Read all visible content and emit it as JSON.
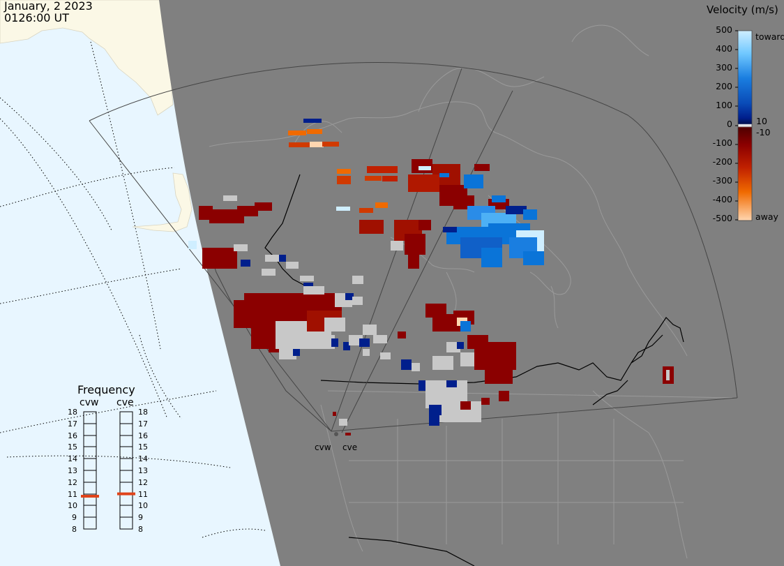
{
  "header": {
    "date": "January, 2 2023",
    "time": "0126:00 UT"
  },
  "legend": {
    "title": "Velocity (m/s)",
    "ticks": [
      "500",
      "400",
      "300",
      "200",
      "100",
      "0",
      "-100",
      "-200",
      "-300",
      "-400",
      "-500"
    ],
    "right_labels": [
      "toward",
      "10",
      "-10",
      "away"
    ],
    "colors": {
      "toward_top": "#cfeeff",
      "blue_mid": "#0a74d8",
      "blue_dark": "#001f8c",
      "red_dark": "#8b0000",
      "orange": "#f06a00",
      "away_bottom": "#ffd6b0",
      "ground_scatter": "#c8c8c8"
    }
  },
  "frequency_panel": {
    "title": "Frequency",
    "radars": [
      {
        "name": "cvw",
        "marker_value": 10.8
      },
      {
        "name": "cve",
        "marker_value": 11.0
      }
    ],
    "scale": [
      "18",
      "17",
      "16",
      "15",
      "14",
      "13",
      "12",
      "11",
      "10",
      "9",
      "8"
    ]
  },
  "radar_sites": [
    {
      "name": "cvw"
    },
    {
      "name": "cve"
    }
  ]
}
